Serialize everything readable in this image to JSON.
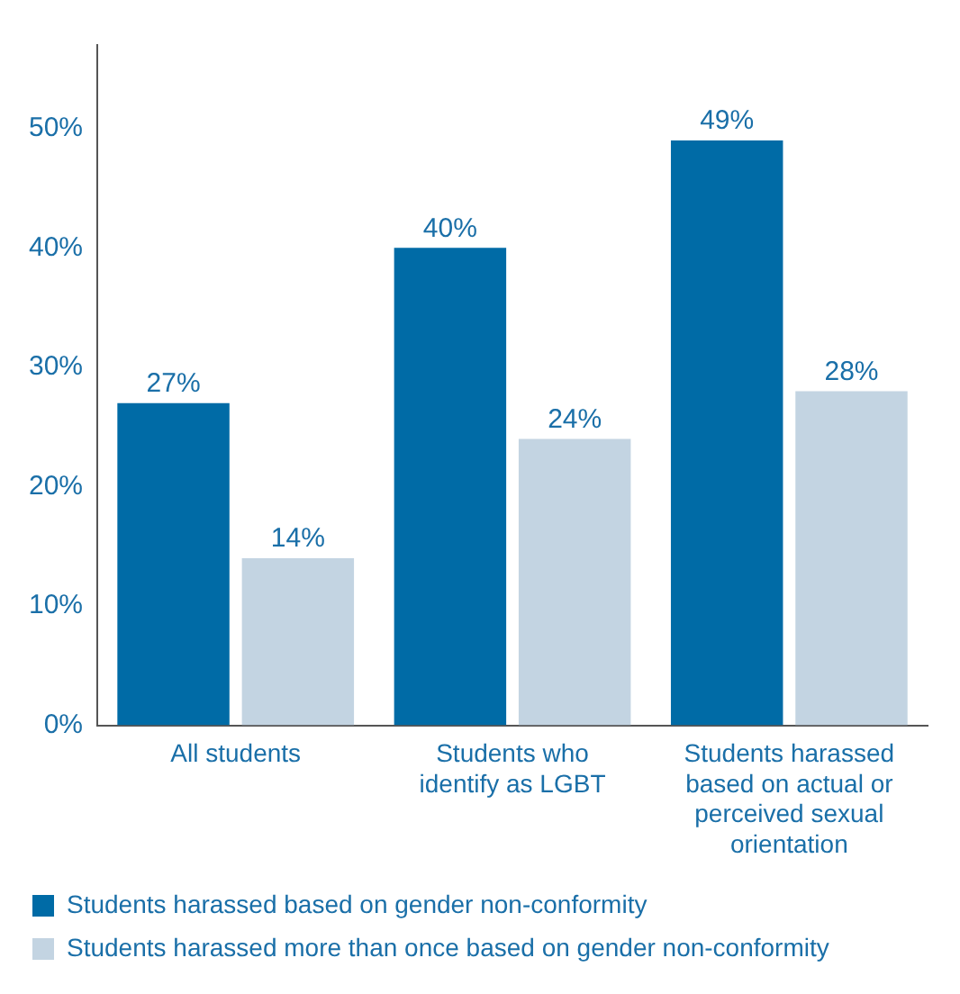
{
  "chart_data": {
    "type": "bar",
    "categories": [
      "All students",
      "Students who identify as LGBT",
      "Students harassed based on actual or perceived sexual orientation"
    ],
    "series": [
      {
        "name": "Students harassed based on gender non-conformity",
        "color": "#006ba6",
        "values": [
          27,
          40,
          49
        ],
        "value_labels": [
          "27%",
          "40%",
          "49%"
        ]
      },
      {
        "name": "Students harassed more than once based on gender non-conformity",
        "color": "#c3d4e2",
        "values": [
          14,
          24,
          28
        ],
        "value_labels": [
          "14%",
          "24%",
          "28%"
        ]
      }
    ],
    "ylim": [
      0,
      57
    ],
    "yticks": [
      {
        "value": 0,
        "label": "0%"
      },
      {
        "value": 10,
        "label": "10%"
      },
      {
        "value": 20,
        "label": "20%"
      },
      {
        "value": 30,
        "label": "30%"
      },
      {
        "value": 40,
        "label": "40%"
      },
      {
        "value": 50,
        "label": "50%"
      }
    ],
    "grid": false,
    "legend": "bottom"
  }
}
